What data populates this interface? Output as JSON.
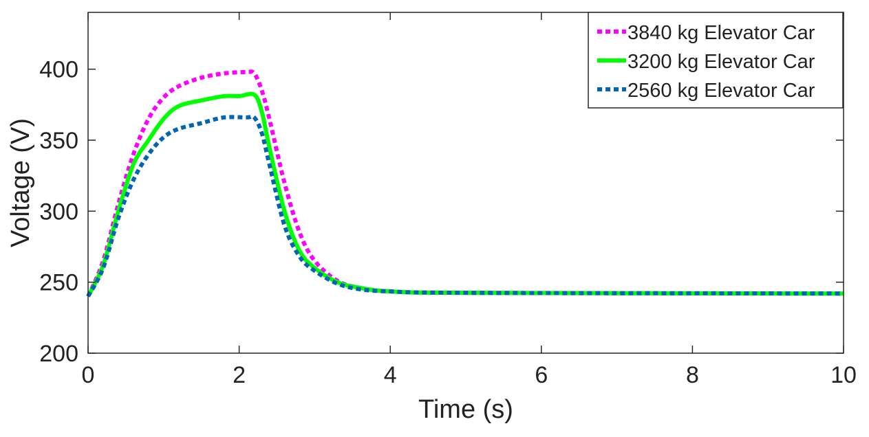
{
  "chart_data": {
    "type": "line",
    "title": "",
    "xlabel": "Time (s)",
    "ylabel": "Voltage (V)",
    "xlim": [
      0,
      10
    ],
    "ylim": [
      200,
      440
    ],
    "xticks": [
      0,
      2,
      4,
      6,
      8,
      10
    ],
    "yticks": [
      200,
      250,
      300,
      350,
      400
    ],
    "grid": false,
    "legend_position": "top-right",
    "series": [
      {
        "name": "3840 kg Elevator Car",
        "color": "#ff00ff",
        "style": "dotted",
        "x": [
          0,
          0.2,
          0.4,
          0.6,
          0.8,
          1.0,
          1.2,
          1.5,
          1.8,
          2.1,
          2.2,
          2.3,
          2.4,
          2.6,
          2.8,
          3.0,
          3.3,
          3.6,
          4.0,
          5.0,
          10
        ],
        "y": [
          240,
          265,
          305,
          340,
          365,
          380,
          388,
          394,
          397,
          398,
          397,
          385,
          365,
          320,
          285,
          265,
          251,
          246,
          243.5,
          242.5,
          242
        ]
      },
      {
        "name": "3200 kg Elevator Car",
        "color": "#00ff00",
        "style": "solid",
        "x": [
          0,
          0.2,
          0.4,
          0.6,
          0.8,
          1.0,
          1.2,
          1.5,
          1.8,
          2.0,
          2.2,
          2.3,
          2.4,
          2.6,
          2.8,
          3.0,
          3.3,
          3.6,
          4.0,
          5.0,
          10
        ],
        "y": [
          240,
          262,
          300,
          333,
          350,
          365,
          374,
          378,
          381,
          381,
          382,
          370,
          345,
          300,
          272,
          260,
          250,
          246,
          243.5,
          242.5,
          242
        ]
      },
      {
        "name": "2560 kg Elevator Car",
        "color": "#0066b3",
        "style": "dotted",
        "x": [
          0,
          0.2,
          0.4,
          0.6,
          0.8,
          1.0,
          1.2,
          1.5,
          1.8,
          2.1,
          2.2,
          2.3,
          2.4,
          2.6,
          2.8,
          3.0,
          3.3,
          3.6,
          4.0,
          5.0,
          10
        ],
        "y": [
          240,
          260,
          295,
          322,
          340,
          352,
          358,
          362,
          366,
          366,
          366,
          355,
          333,
          290,
          268,
          258,
          249,
          245,
          243.5,
          242.5,
          242
        ]
      }
    ]
  }
}
